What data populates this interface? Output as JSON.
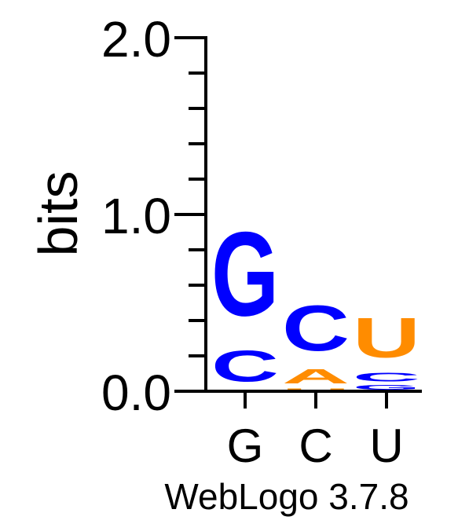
{
  "chart_data": {
    "type": "sequence-logo",
    "ylabel": "bits",
    "ylim": [
      0,
      2
    ],
    "y_tick_labels": [
      "0.0",
      "1.0",
      "2.0"
    ],
    "y_tick_values": [
      0,
      1,
      2
    ],
    "minor_tick_step": 0.2,
    "positions": [
      {
        "label": "G",
        "stack": [
          {
            "letter": "C",
            "bits": 0.28
          },
          {
            "letter": "G",
            "bits": 0.76
          }
        ]
      },
      {
        "label": "C",
        "stack": [
          {
            "letter": "U",
            "bits": 0.02
          },
          {
            "letter": "A",
            "bits": 0.13
          },
          {
            "letter": "C",
            "bits": 0.41
          }
        ]
      },
      {
        "label": "U",
        "stack": [
          {
            "letter": "G",
            "bits": 0.04
          },
          {
            "letter": "C",
            "bits": 0.08
          },
          {
            "letter": "U",
            "bits": 0.36
          }
        ]
      }
    ],
    "colors": {
      "G": "#0000ff",
      "C": "#0000ff",
      "A": "#ff8c00",
      "U": "#ff8c00"
    },
    "footer": "WebLogo 3.7.8"
  }
}
